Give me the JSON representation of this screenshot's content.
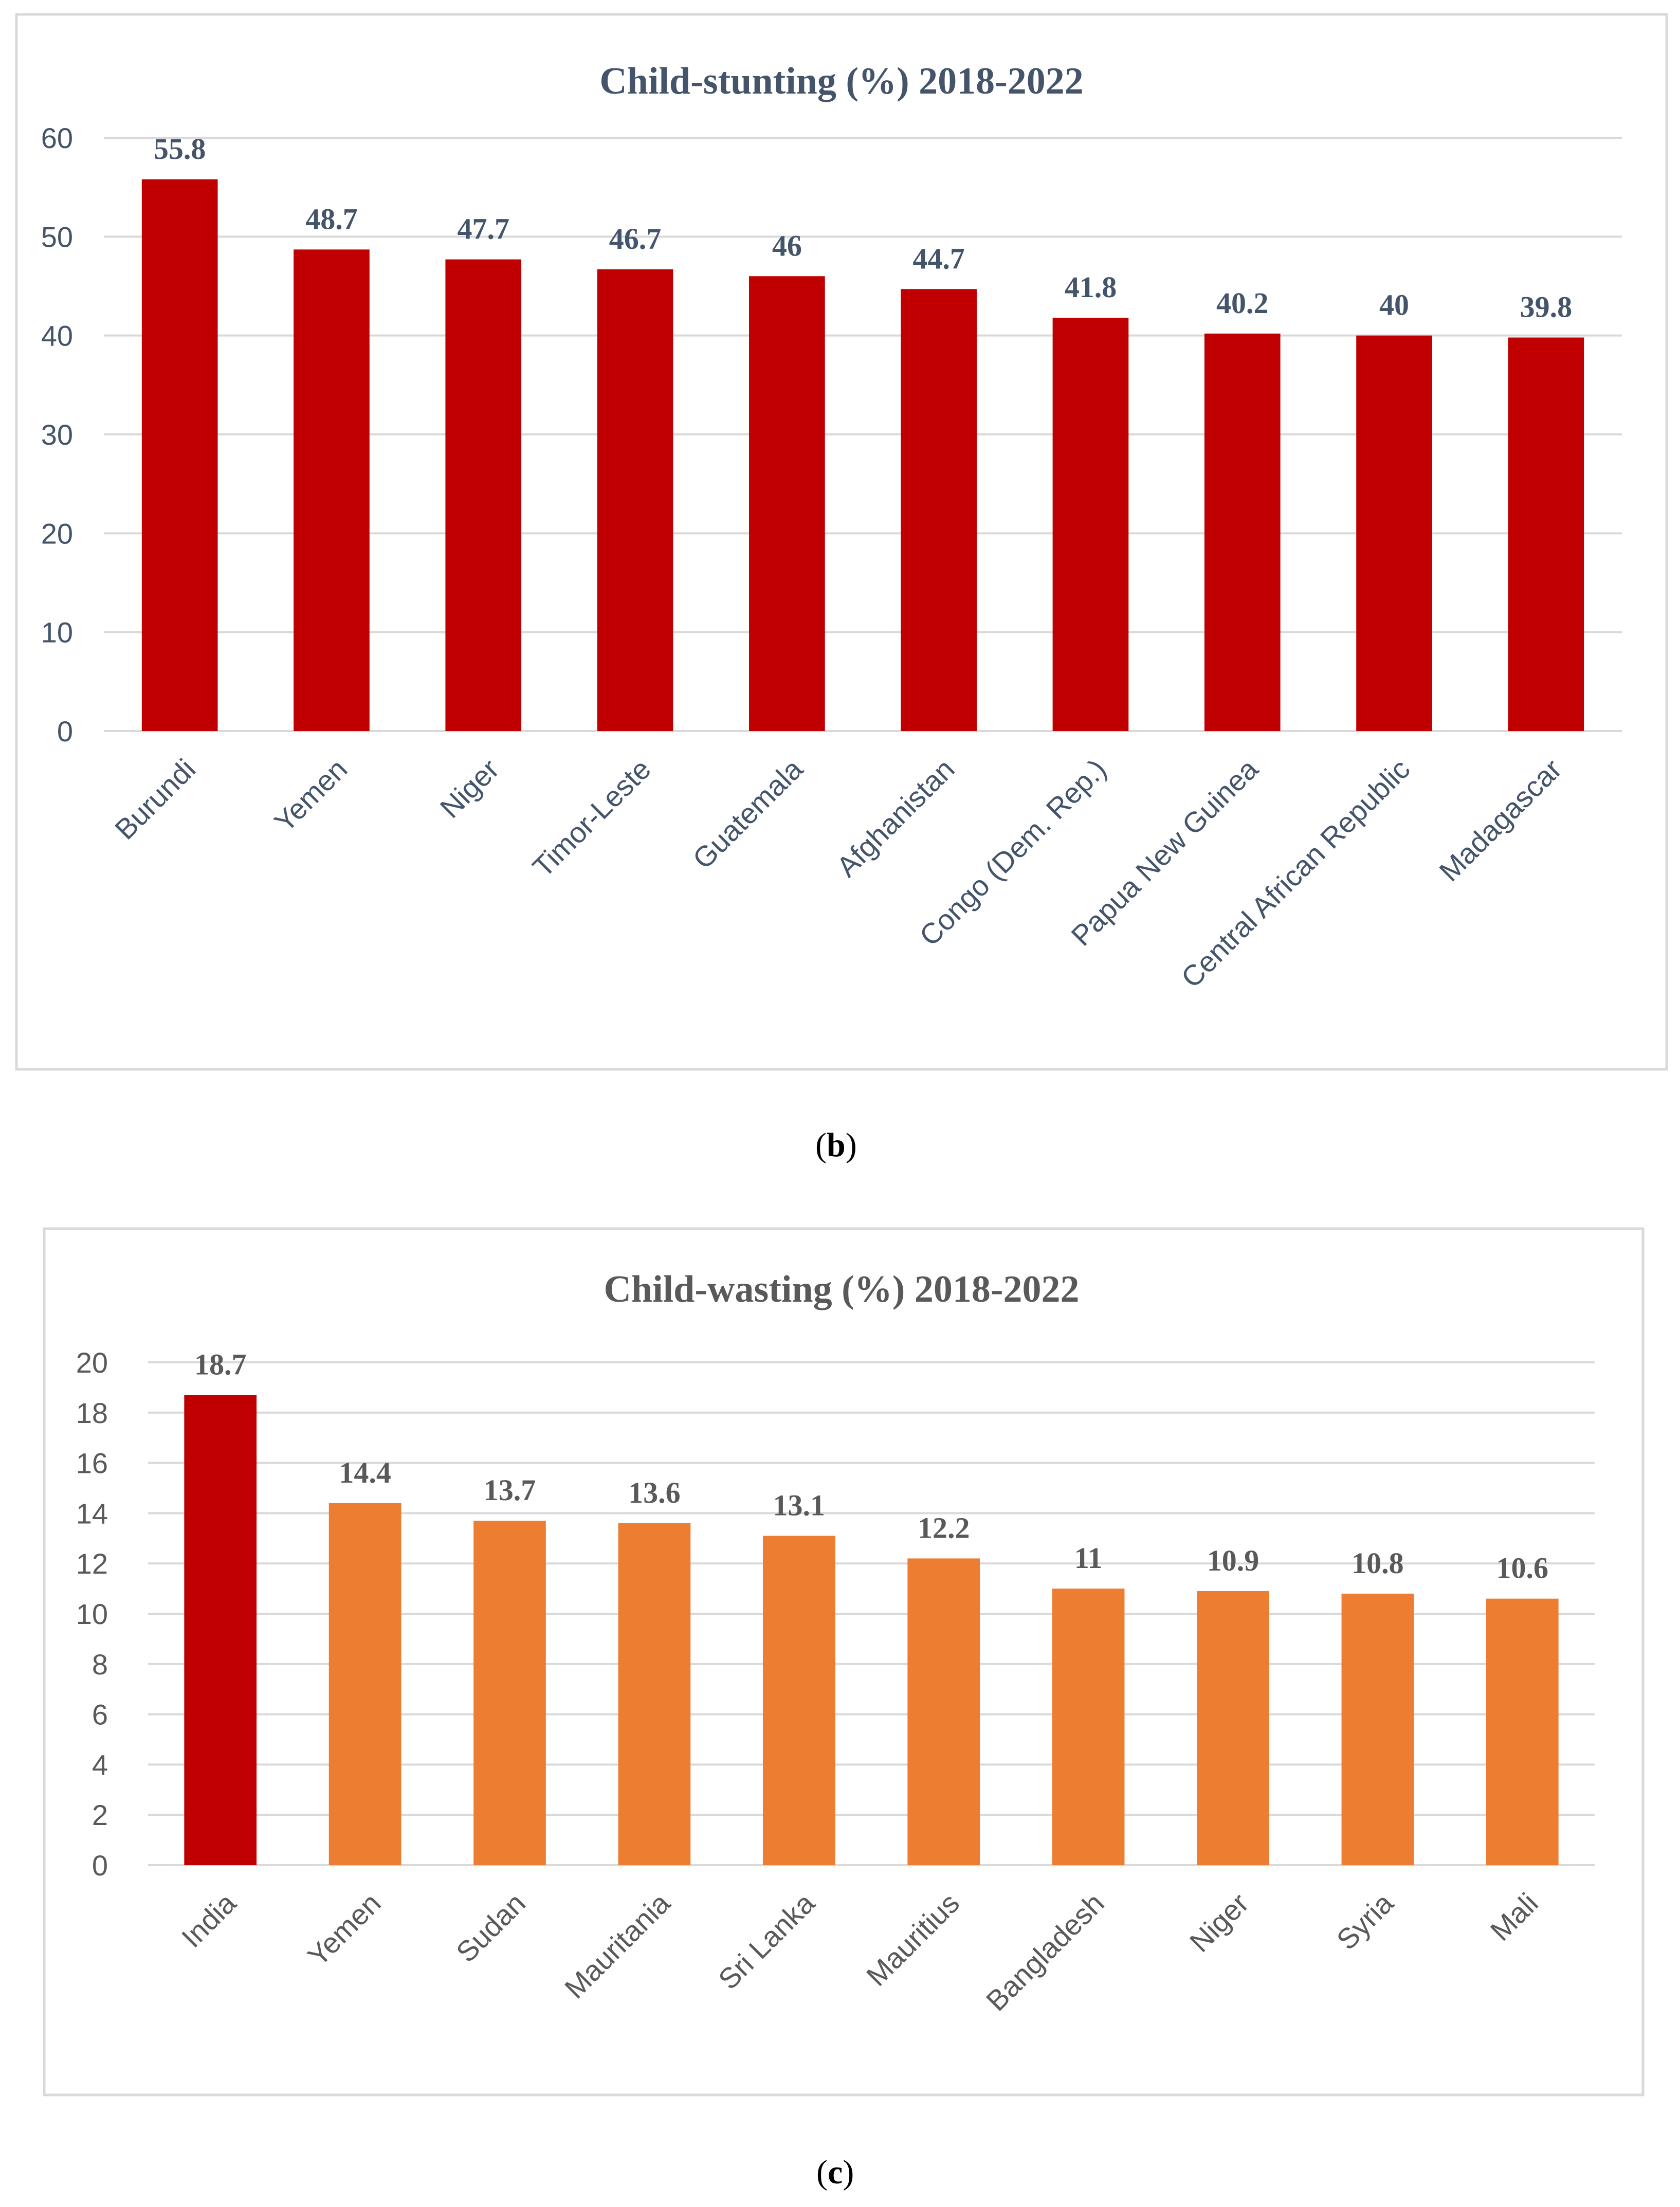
{
  "colors": {
    "title_b": "#44546a",
    "title_c": "#595959",
    "text_dark": "#44546a",
    "text_gray": "#595959",
    "stunting_bar": "#c00000",
    "wasting_highlight": "#c00000",
    "wasting_bar": "#ed7d31"
  },
  "captions": {
    "b_open": "(",
    "b_letter": "b",
    "b_close": ")",
    "c_open": "(",
    "c_letter": "c",
    "c_close": ")"
  },
  "chart_data": [
    {
      "id": "b",
      "type": "bar",
      "title": "Child-stunting (%) 2018-2022",
      "categories": [
        "Burundi",
        "Yemen",
        "Niger",
        "Timor-Leste",
        "Guatemala",
        "Afghanistan",
        "Congo (Dem. Rep.)",
        "Papua New Guinea",
        "Central African Republic",
        "Madagascar"
      ],
      "values": [
        55.8,
        48.7,
        47.7,
        46.7,
        46,
        44.7,
        41.8,
        40.2,
        40,
        39.8
      ],
      "data_labels": [
        "55.8",
        "48.7",
        "47.7",
        "46.7",
        "46",
        "44.7",
        "41.8",
        "40.2",
        "40",
        "39.8"
      ],
      "ylim": [
        0,
        60
      ],
      "yticks": [
        0,
        10,
        20,
        30,
        40,
        50,
        60
      ],
      "grid": true,
      "legend": "none",
      "bar_colors": [
        "#c00000",
        "#c00000",
        "#c00000",
        "#c00000",
        "#c00000",
        "#c00000",
        "#c00000",
        "#c00000",
        "#c00000",
        "#c00000"
      ],
      "xlabel": "",
      "ylabel": ""
    },
    {
      "id": "c",
      "type": "bar",
      "title": "Child-wasting (%) 2018-2022",
      "categories": [
        "India",
        "Yemen",
        "Sudan",
        "Mauritania",
        "Sri Lanka",
        "Mauritius",
        "Bangladesh",
        "Niger",
        "Syria",
        "Mali"
      ],
      "values": [
        18.7,
        14.4,
        13.7,
        13.6,
        13.1,
        12.2,
        11,
        10.9,
        10.8,
        10.6
      ],
      "data_labels": [
        "18.7",
        "14.4",
        "13.7",
        "13.6",
        "13.1",
        "12.2",
        "11",
        "10.9",
        "10.8",
        "10.6"
      ],
      "ylim": [
        0,
        20
      ],
      "yticks": [
        0,
        2,
        4,
        6,
        8,
        10,
        12,
        14,
        16,
        18,
        20
      ],
      "grid": true,
      "legend": "none",
      "bar_colors": [
        "#c00000",
        "#ed7d31",
        "#ed7d31",
        "#ed7d31",
        "#ed7d31",
        "#ed7d31",
        "#ed7d31",
        "#ed7d31",
        "#ed7d31",
        "#ed7d31"
      ],
      "xlabel": "",
      "ylabel": ""
    }
  ]
}
